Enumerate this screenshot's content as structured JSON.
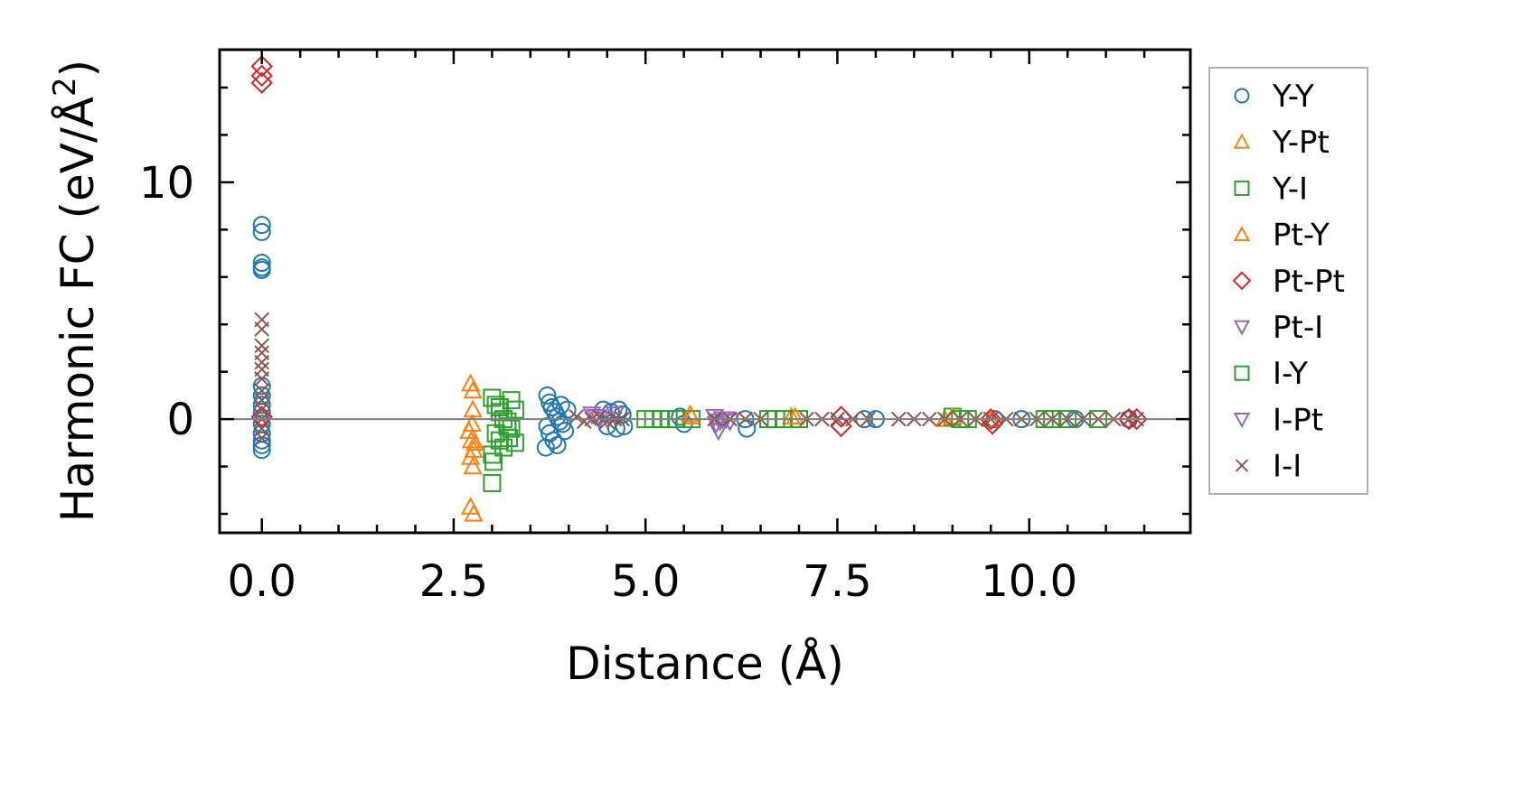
{
  "chart_data": {
    "type": "scatter",
    "title": "",
    "xlabel": "Distance (Å)",
    "ylabel_main": "Harmonic FC (eV/Å",
    "ylabel_sup": "2",
    "ylabel_close": ")",
    "xlim": [
      -0.55,
      12.1
    ],
    "ylim": [
      -4.8,
      15.6
    ],
    "xticks": [
      {
        "value": 0.0,
        "label": "0.0"
      },
      {
        "value": 2.5,
        "label": "2.5"
      },
      {
        "value": 5.0,
        "label": "5.0"
      },
      {
        "value": 7.5,
        "label": "7.5"
      },
      {
        "value": 10.0,
        "label": "10.0"
      }
    ],
    "yticks": [
      {
        "value": 0,
        "label": "0"
      },
      {
        "value": 10,
        "label": "10"
      }
    ],
    "grid": false,
    "reference_line_y": 0,
    "legend_placement": "outside-right",
    "series": [
      {
        "name": "Y-Y",
        "marker": "circle",
        "color": "#1f77b4",
        "points": [
          [
            0,
            8.2
          ],
          [
            0,
            7.9
          ],
          [
            0,
            6.6
          ],
          [
            0,
            6.4
          ],
          [
            0,
            6.3
          ],
          [
            0,
            1.4
          ],
          [
            0,
            1.0
          ],
          [
            0,
            0.6
          ],
          [
            0,
            0.3
          ],
          [
            0,
            -0.2
          ],
          [
            0,
            -0.6
          ],
          [
            0,
            -0.9
          ],
          [
            0,
            -1.1
          ],
          [
            0,
            -1.3
          ],
          [
            3.72,
            1.0
          ],
          [
            3.75,
            0.7
          ],
          [
            3.78,
            0.5
          ],
          [
            3.82,
            0.3
          ],
          [
            3.85,
            0.1
          ],
          [
            3.88,
            -0.1
          ],
          [
            3.72,
            -0.3
          ],
          [
            3.75,
            -0.6
          ],
          [
            3.8,
            -0.9
          ],
          [
            3.85,
            -1.1
          ],
          [
            3.7,
            -1.2
          ],
          [
            3.95,
            -0.5
          ],
          [
            3.98,
            0.4
          ],
          [
            3.92,
            -0.2
          ],
          [
            3.9,
            0.6
          ],
          [
            4.45,
            0.4
          ],
          [
            4.55,
            0.3
          ],
          [
            4.65,
            0.4
          ],
          [
            4.7,
            0.2
          ],
          [
            4.5,
            -0.3
          ],
          [
            4.62,
            -0.4
          ],
          [
            4.72,
            -0.3
          ],
          [
            5.45,
            0.1
          ],
          [
            5.5,
            -0.2
          ],
          [
            6.3,
            0.0
          ],
          [
            6.32,
            -0.4
          ],
          [
            7.85,
            0.0
          ],
          [
            8.0,
            0.0
          ],
          [
            9.55,
            0.0
          ],
          [
            9.9,
            0.0
          ],
          [
            10.6,
            0.0
          ],
          [
            11.3,
            0.0
          ]
        ]
      },
      {
        "name": "Y-Pt",
        "marker": "triangle-up",
        "color": "#ff7f0e",
        "points": [
          [
            2.72,
            1.5
          ],
          [
            2.75,
            1.2
          ],
          [
            2.75,
            0.4
          ],
          [
            2.7,
            -0.5
          ],
          [
            2.73,
            -0.9
          ],
          [
            2.76,
            -1.3
          ],
          [
            2.72,
            -1.6
          ],
          [
            2.75,
            -2.0
          ],
          [
            2.72,
            -3.7
          ],
          [
            2.76,
            -4.0
          ],
          [
            5.6,
            0.1
          ],
          [
            6.9,
            0.1
          ],
          [
            8.9,
            0.0
          ],
          [
            9.5,
            0.0
          ]
        ]
      },
      {
        "name": "Y-I",
        "marker": "square",
        "color": "#2ca02c",
        "points": [
          [
            3.0,
            0.9
          ],
          [
            3.05,
            0.6
          ],
          [
            3.1,
            0.3
          ],
          [
            3.15,
            0.0
          ],
          [
            3.2,
            -0.3
          ],
          [
            3.05,
            -0.6
          ],
          [
            3.1,
            -0.9
          ],
          [
            3.15,
            -1.2
          ],
          [
            3.0,
            -1.5
          ],
          [
            3.02,
            -1.8
          ],
          [
            3.0,
            -2.7
          ],
          [
            3.25,
            0.8
          ],
          [
            3.3,
            0.4
          ],
          [
            3.25,
            -0.4
          ],
          [
            3.3,
            -1.0
          ],
          [
            5.0,
            0.0
          ],
          [
            5.2,
            0.0
          ],
          [
            5.4,
            0.0
          ],
          [
            5.6,
            0.0
          ],
          [
            6.6,
            0.0
          ],
          [
            6.8,
            0.0
          ],
          [
            7.0,
            0.0
          ],
          [
            9.0,
            0.1
          ],
          [
            9.2,
            0.0
          ],
          [
            10.2,
            0.0
          ],
          [
            10.5,
            0.0
          ],
          [
            10.9,
            0.0
          ]
        ]
      },
      {
        "name": "Pt-Y",
        "marker": "triangle-up",
        "color": "#ff7f0e",
        "points": [
          [
            2.78,
            -1.0
          ],
          [
            2.74,
            -0.2
          ],
          [
            5.58,
            0.2
          ],
          [
            6.95,
            0.1
          ],
          [
            9.0,
            0.1
          ]
        ]
      },
      {
        "name": "Pt-Pt",
        "marker": "diamond",
        "color": "#d62728",
        "points": [
          [
            0,
            14.9
          ],
          [
            0,
            14.5
          ],
          [
            0,
            14.2
          ],
          [
            0,
            0.1
          ],
          [
            7.55,
            0.1
          ],
          [
            7.55,
            -0.3
          ],
          [
            9.5,
            0.0
          ],
          [
            9.52,
            -0.2
          ],
          [
            11.3,
            0.0
          ],
          [
            11.4,
            0.0
          ]
        ]
      },
      {
        "name": "Pt-I",
        "marker": "triangle-down",
        "color": "#9467bd",
        "points": [
          [
            4.3,
            0.2
          ],
          [
            4.4,
            0.0
          ],
          [
            4.6,
            0.2
          ],
          [
            5.9,
            0.1
          ],
          [
            5.92,
            -0.2
          ],
          [
            5.95,
            -0.5
          ],
          [
            6.05,
            0.0
          ],
          [
            6.1,
            -0.1
          ]
        ]
      },
      {
        "name": "I-Y",
        "marker": "square",
        "color": "#2ca02c",
        "points": [
          [
            3.1,
            0.5
          ],
          [
            3.2,
            -0.1
          ],
          [
            3.22,
            -0.8
          ],
          [
            5.1,
            0.0
          ],
          [
            5.3,
            0.0
          ],
          [
            6.7,
            0.0
          ],
          [
            9.1,
            0.0
          ],
          [
            10.3,
            0.0
          ]
        ]
      },
      {
        "name": "I-Pt",
        "marker": "triangle-down",
        "color": "#9467bd",
        "points": [
          [
            4.35,
            0.1
          ],
          [
            4.5,
            0.0
          ],
          [
            5.97,
            -0.1
          ],
          [
            6.0,
            0.0
          ]
        ]
      },
      {
        "name": "I-I",
        "marker": "x",
        "color": "#8c564b",
        "points": [
          [
            0,
            4.2
          ],
          [
            0,
            3.8
          ],
          [
            0,
            3.1
          ],
          [
            0,
            2.8
          ],
          [
            0,
            2.4
          ],
          [
            0,
            2.1
          ],
          [
            0,
            1.7
          ],
          [
            0,
            1.2
          ],
          [
            0,
            0.8
          ],
          [
            0,
            0.4
          ],
          [
            0,
            0.0
          ],
          [
            0,
            -0.4
          ],
          [
            0,
            -0.8
          ],
          [
            4.1,
            0.1
          ],
          [
            4.2,
            -0.1
          ],
          [
            4.3,
            0.0
          ],
          [
            4.4,
            0.1
          ],
          [
            4.5,
            -0.1
          ],
          [
            4.6,
            0.0
          ],
          [
            4.7,
            0.0
          ],
          [
            5.9,
            0.0
          ],
          [
            6.1,
            0.0
          ],
          [
            6.3,
            0.0
          ],
          [
            6.5,
            0.0
          ],
          [
            7.1,
            0.0
          ],
          [
            7.3,
            0.0
          ],
          [
            7.5,
            0.0
          ],
          [
            7.7,
            0.0
          ],
          [
            7.9,
            0.0
          ],
          [
            8.3,
            0.0
          ],
          [
            8.5,
            0.0
          ],
          [
            8.7,
            0.0
          ],
          [
            8.9,
            0.0
          ],
          [
            9.1,
            0.0
          ],
          [
            9.3,
            0.0
          ],
          [
            9.5,
            0.0
          ],
          [
            9.7,
            0.0
          ],
          [
            9.9,
            0.0
          ],
          [
            10.1,
            0.0
          ],
          [
            10.3,
            0.0
          ],
          [
            10.5,
            0.0
          ],
          [
            10.7,
            0.0
          ],
          [
            10.9,
            0.0
          ],
          [
            11.1,
            0.0
          ],
          [
            11.3,
            0.0
          ],
          [
            11.4,
            0.0
          ]
        ]
      }
    ]
  }
}
